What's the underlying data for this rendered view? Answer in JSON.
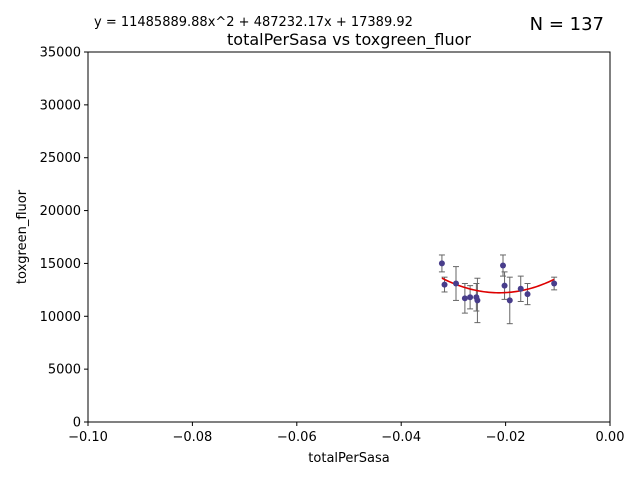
{
  "chart_data": {
    "type": "scatter",
    "title": "totalPerSasa vs toxgreen_fluor",
    "xlabel": "totalPerSasa",
    "ylabel": "toxgreen_fluor",
    "xlim": [
      -0.1,
      0.0
    ],
    "ylim": [
      0,
      35000
    ],
    "x_ticks": [
      -0.1,
      -0.08,
      -0.06,
      -0.04,
      -0.02,
      0.0
    ],
    "x_tick_labels": [
      "−0.10",
      "−0.08",
      "−0.06",
      "−0.04",
      "−0.02",
      "0.00"
    ],
    "y_ticks": [
      0,
      5000,
      10000,
      15000,
      20000,
      25000,
      30000,
      35000
    ],
    "y_tick_labels": [
      "0",
      "5000",
      "10000",
      "15000",
      "20000",
      "25000",
      "30000",
      "35000"
    ],
    "equation": "y = 11485889.88x^2 + 487232.17x + 17389.92",
    "annotation": "N = 137",
    "grid": false,
    "colors": {
      "points": "#483d8b",
      "errorbars": "#666666",
      "fit": "#dd0000"
    },
    "points": [
      {
        "x": -0.0322,
        "y": 15000,
        "err": 800
      },
      {
        "x": -0.0317,
        "y": 13000,
        "err": 700
      },
      {
        "x": -0.0295,
        "y": 13100,
        "err": 1600
      },
      {
        "x": -0.0278,
        "y": 11700,
        "err": 1400
      },
      {
        "x": -0.0268,
        "y": 11800,
        "err": 1100
      },
      {
        "x": -0.0256,
        "y": 11800,
        "err": 1300
      },
      {
        "x": -0.0254,
        "y": 11500,
        "err": 2100
      },
      {
        "x": -0.0205,
        "y": 14800,
        "err": 1000
      },
      {
        "x": -0.0202,
        "y": 12900,
        "err": 1300
      },
      {
        "x": -0.0192,
        "y": 11500,
        "err": 2200
      },
      {
        "x": -0.0171,
        "y": 12600,
        "err": 1200
      },
      {
        "x": -0.0158,
        "y": 12100,
        "err": 1000
      },
      {
        "x": -0.0107,
        "y": 13100,
        "err": 600
      }
    ],
    "fit": {
      "name": "",
      "coefficients": [
        11485889.88,
        487232.17,
        17389.92
      ],
      "x_range": [
        -0.0322,
        -0.0107
      ]
    }
  }
}
